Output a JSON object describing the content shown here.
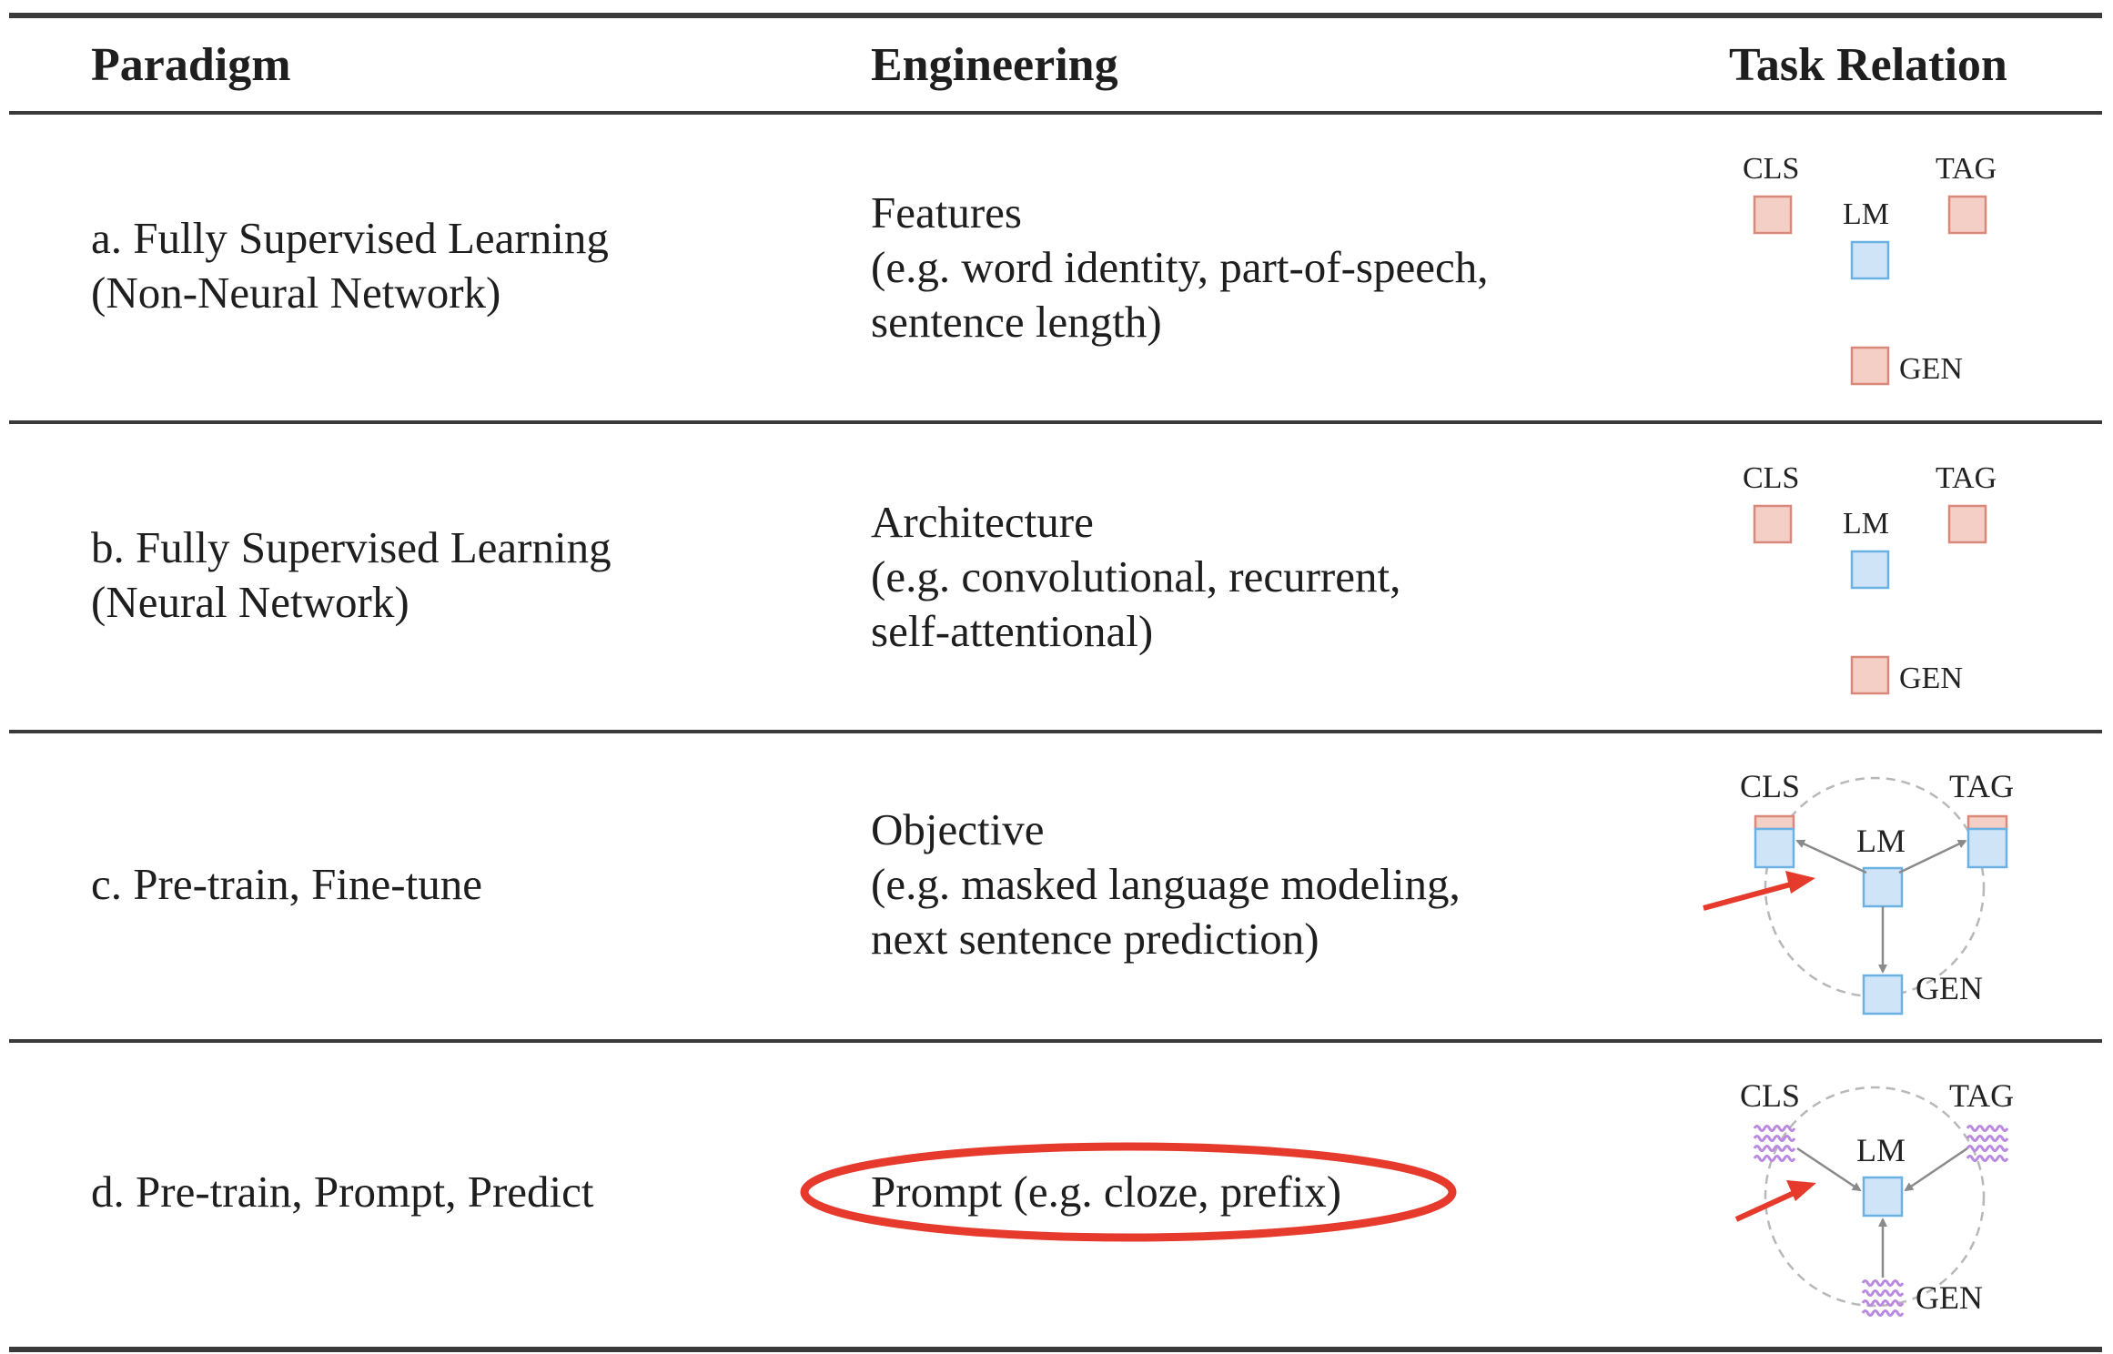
{
  "headers": {
    "paradigm": "Paradigm",
    "engineering": "Engineering",
    "task_relation": "Task Relation"
  },
  "rows": [
    {
      "paradigm": [
        "a. Fully Supervised Learning",
        "(Non-Neural Network)"
      ],
      "engineering": [
        "Features",
        "(e.g. word identity, part-of-speech,",
        "sentence length)"
      ],
      "diagram": {
        "type": "isolated",
        "labels": {
          "cls": "CLS",
          "tag": "TAG",
          "lm": "LM",
          "gen": "GEN"
        }
      }
    },
    {
      "paradigm": [
        "b. Fully Supervised Learning",
        "(Neural Network)"
      ],
      "engineering": [
        "Architecture",
        "(e.g. convolutional, recurrent,",
        "self-attentional)"
      ],
      "diagram": {
        "type": "isolated",
        "labels": {
          "cls": "CLS",
          "tag": "TAG",
          "lm": "LM",
          "gen": "GEN"
        }
      }
    },
    {
      "paradigm": [
        "c. Pre-train, Fine-tune"
      ],
      "engineering": [
        "Objective",
        "(e.g. masked language modeling,",
        "next sentence prediction)"
      ],
      "diagram": {
        "type": "finetune",
        "labels": {
          "cls": "CLS",
          "tag": "TAG",
          "lm": "LM",
          "gen": "GEN"
        }
      }
    },
    {
      "paradigm": [
        "d. Pre-train, Prompt, Predict"
      ],
      "engineering": [
        "Prompt (e.g. cloze, prefix)"
      ],
      "diagram": {
        "type": "prompt",
        "labels": {
          "cls": "CLS",
          "tag": "TAG",
          "lm": "LM",
          "gen": "GEN"
        }
      }
    }
  ],
  "colors": {
    "task_fill": "#f4cfc5",
    "task_stroke": "#d9887a",
    "lm_fill": "#cfe5f7",
    "lm_stroke": "#6cb1e3",
    "prompt_wave": "#b98ae0",
    "arrow_gray": "#8a8a8a",
    "circle_gray": "#b8b8b8",
    "annotation_red": "#e53a2c"
  }
}
